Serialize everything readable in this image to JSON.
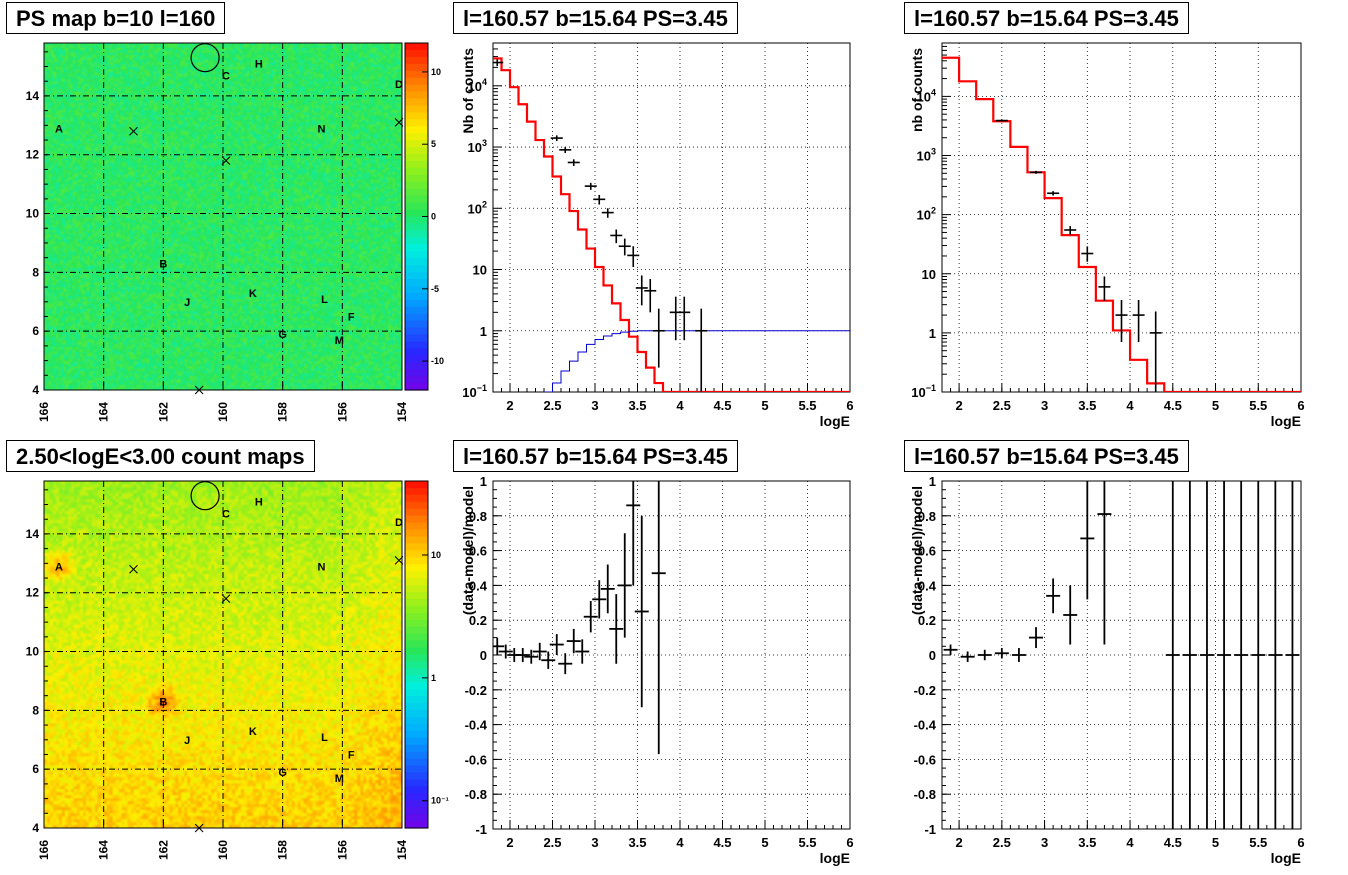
{
  "panels": {
    "ps_map": {
      "title": "PS map b=10 l=160"
    },
    "count_map": {
      "title": "2.50<logE<3.00 count maps"
    },
    "spec1": {
      "title": "l=160.57 b=15.64 PS=3.45"
    },
    "spec2": {
      "title": "l=160.57 b=15.64 PS=3.45"
    },
    "resid1": {
      "title": "l=160.57 b=15.64 PS=3.45"
    },
    "resid2": {
      "title": "l=160.57 b=15.64 PS=3.45"
    }
  },
  "chart_data": [
    {
      "id": "ps_map",
      "type": "heatmap",
      "title": "PS map b=10 l=160",
      "x_range": [
        166,
        154
      ],
      "y_range": [
        4,
        15.8
      ],
      "x_ticks": [
        "166",
        "164",
        "162",
        "160",
        "158",
        "156",
        "154"
      ],
      "y_ticks": [
        "4",
        "6",
        "8",
        "10",
        "12",
        "14"
      ],
      "colorbar_ticks": [
        "10",
        "5",
        "0",
        "-5",
        "-10"
      ],
      "colorbar_range": [
        -12,
        12
      ],
      "background_value": 0,
      "grid": true,
      "markers": [
        {
          "label": "A",
          "l": 165.5,
          "b": 12.9
        },
        {
          "label": "B",
          "l": 162.0,
          "b": 8.3
        },
        {
          "label": "C",
          "l": 159.9,
          "b": 14.7
        },
        {
          "label": "D",
          "l": 154.1,
          "b": 14.4
        },
        {
          "label": "F",
          "l": 155.7,
          "b": 6.5
        },
        {
          "label": "G",
          "l": 158.0,
          "b": 5.9
        },
        {
          "label": "H",
          "l": 158.8,
          "b": 15.1
        },
        {
          "label": "J",
          "l": 161.2,
          "b": 7.0
        },
        {
          "label": "K",
          "l": 159.0,
          "b": 7.3
        },
        {
          "label": "L",
          "l": 156.6,
          "b": 7.1
        },
        {
          "label": "M",
          "l": 156.1,
          "b": 5.7
        },
        {
          "label": "N",
          "l": 156.7,
          "b": 12.9
        }
      ],
      "crosses": [
        {
          "l": 163.0,
          "b": 12.8
        },
        {
          "l": 159.9,
          "b": 11.8
        },
        {
          "l": 160.8,
          "b": 4.0
        },
        {
          "l": 154.1,
          "b": 13.1
        }
      ],
      "circle": {
        "l": 160.6,
        "b": 15.3
      }
    },
    {
      "id": "count_map",
      "type": "heatmap",
      "title": "2.50<logE<3.00 count maps",
      "x_range": [
        166,
        154
      ],
      "y_range": [
        4,
        15.8
      ],
      "x_ticks": [
        "166",
        "164",
        "162",
        "160",
        "158",
        "156",
        "154"
      ],
      "y_ticks": [
        "4",
        "6",
        "8",
        "10",
        "12",
        "14"
      ],
      "colorbar_ticks": [
        "10",
        "1",
        "10⁻¹"
      ],
      "colorbar_log": true,
      "colorbar_range": [
        0.06,
        40
      ],
      "grid": true,
      "markers": [
        {
          "label": "A",
          "l": 165.5,
          "b": 12.9
        },
        {
          "label": "B",
          "l": 162.0,
          "b": 8.3
        },
        {
          "label": "C",
          "l": 159.9,
          "b": 14.7
        },
        {
          "label": "D",
          "l": 154.1,
          "b": 14.4
        },
        {
          "label": "F",
          "l": 155.7,
          "b": 6.5
        },
        {
          "label": "G",
          "l": 158.0,
          "b": 5.9
        },
        {
          "label": "H",
          "l": 158.8,
          "b": 15.1
        },
        {
          "label": "J",
          "l": 161.2,
          "b": 7.0
        },
        {
          "label": "K",
          "l": 159.0,
          "b": 7.3
        },
        {
          "label": "L",
          "l": 156.6,
          "b": 7.1
        },
        {
          "label": "M",
          "l": 156.1,
          "b": 5.7
        },
        {
          "label": "N",
          "l": 156.7,
          "b": 12.9
        }
      ],
      "crosses": [
        {
          "l": 163.0,
          "b": 12.8
        },
        {
          "l": 159.9,
          "b": 11.8
        },
        {
          "l": 160.8,
          "b": 4.0
        },
        {
          "l": 154.1,
          "b": 13.1
        }
      ],
      "circle": {
        "l": 160.6,
        "b": 15.3
      }
    },
    {
      "id": "spec1",
      "type": "line",
      "title": "l=160.57 b=15.64 PS=3.45",
      "xlabel": "logE",
      "ylabel": "Nb of counts",
      "xlim": [
        1.8,
        6
      ],
      "ylog": true,
      "ylim": [
        0.1,
        50000
      ],
      "x_ticks": [
        "2",
        "2.5",
        "3",
        "3.5",
        "4",
        "4.5",
        "5",
        "5.5",
        "6"
      ],
      "y_ticks": [
        {
          "v": 0.1,
          "base": "10",
          "exp": "−1"
        },
        {
          "v": 1,
          "base": "1"
        },
        {
          "v": 10,
          "base": "10"
        },
        {
          "v": 100,
          "base": "10",
          "exp": "2"
        },
        {
          "v": 1000,
          "base": "10",
          "exp": "3"
        },
        {
          "v": 10000,
          "base": "10",
          "exp": "4"
        }
      ],
      "model_step": {
        "edges": [
          1.8,
          1.9,
          2.0,
          2.1,
          2.2,
          2.3,
          2.4,
          2.5,
          2.6,
          2.7,
          2.8,
          2.9,
          3.0,
          3.1,
          3.2,
          3.3,
          3.4,
          3.5,
          3.6,
          3.7,
          3.8,
          3.9,
          4.0,
          4.1,
          4.2,
          4.3,
          6.0
        ],
        "values": [
          28000,
          18000,
          9500,
          5000,
          2600,
          1300,
          700,
          330,
          170,
          90,
          45,
          22,
          11,
          5.5,
          2.8,
          1.5,
          0.8,
          0.45,
          0.25,
          0.14,
          0.1,
          0.1,
          0.1,
          0.1,
          0.1,
          0.1
        ]
      },
      "data_points": [
        {
          "x": 1.85,
          "y": 24000,
          "lo": 21000,
          "hi": 27000
        },
        {
          "x": 2.55,
          "y": 1400,
          "lo": 1250,
          "hi": 1550
        },
        {
          "x": 2.65,
          "y": 900,
          "lo": 800,
          "hi": 1000
        },
        {
          "x": 2.75,
          "y": 560,
          "lo": 490,
          "hi": 630
        },
        {
          "x": 2.95,
          "y": 230,
          "lo": 200,
          "hi": 260
        },
        {
          "x": 3.05,
          "y": 140,
          "lo": 115,
          "hi": 165
        },
        {
          "x": 3.15,
          "y": 85,
          "lo": 70,
          "hi": 100
        },
        {
          "x": 3.25,
          "y": 36,
          "lo": 27,
          "hi": 45
        },
        {
          "x": 3.35,
          "y": 24,
          "lo": 17,
          "hi": 32
        },
        {
          "x": 3.45,
          "y": 17,
          "lo": 11,
          "hi": 24
        },
        {
          "x": 3.55,
          "y": 5,
          "lo": 2.6,
          "hi": 8
        },
        {
          "x": 3.65,
          "y": 4.5,
          "lo": 2,
          "hi": 7
        },
        {
          "x": 3.75,
          "y": 1.0,
          "lo": 0.25,
          "hi": 2.3
        },
        {
          "x": 3.95,
          "y": 2.0,
          "lo": 0.7,
          "hi": 3.6
        },
        {
          "x": 4.05,
          "y": 2.0,
          "lo": 0.7,
          "hi": 3.6
        },
        {
          "x": 4.25,
          "y": 1.0,
          "lo": 0.1,
          "hi": 2.3
        }
      ],
      "bg_curve": {
        "x": [
          2.4,
          2.5,
          2.6,
          2.7,
          2.8,
          2.9,
          3.0,
          3.1,
          3.2,
          3.3,
          3.4,
          3.5,
          3.6,
          3.7,
          3.8,
          3.9,
          4.0,
          6.0
        ],
        "y": [
          0.1,
          0.14,
          0.22,
          0.32,
          0.45,
          0.6,
          0.72,
          0.82,
          0.9,
          0.95,
          0.98,
          1.0,
          1.0,
          1.0,
          1.0,
          1.0,
          1.0,
          1.0
        ]
      }
    },
    {
      "id": "spec2",
      "type": "line",
      "title": "l=160.57 b=15.64 PS=3.45",
      "xlabel": "logE",
      "ylabel": "nb of counts",
      "xlim": [
        1.8,
        6
      ],
      "ylog": true,
      "ylim": [
        0.1,
        80000
      ],
      "x_ticks": [
        "2",
        "2.5",
        "3",
        "3.5",
        "4",
        "4.5",
        "5",
        "5.5",
        "6"
      ],
      "y_ticks": [
        {
          "v": 0.1,
          "base": "10",
          "exp": "−1"
        },
        {
          "v": 1,
          "base": "1"
        },
        {
          "v": 10,
          "base": "10"
        },
        {
          "v": 100,
          "base": "10",
          "exp": "2"
        },
        {
          "v": 1000,
          "base": "10",
          "exp": "3"
        },
        {
          "v": 10000,
          "base": "10",
          "exp": "4"
        }
      ],
      "model_step": {
        "edges": [
          1.8,
          2.0,
          2.2,
          2.4,
          2.6,
          2.8,
          3.0,
          3.2,
          3.4,
          3.6,
          3.8,
          4.0,
          4.2,
          4.4,
          4.6,
          6.0
        ],
        "values": [
          45000,
          18000,
          9000,
          3800,
          1400,
          520,
          190,
          45,
          13,
          3.5,
          1.1,
          0.35,
          0.14,
          0.1,
          0.1
        ]
      },
      "data_points": [
        {
          "x": 2.5,
          "y": 3900,
          "lo": 3750,
          "hi": 4050
        },
        {
          "x": 2.9,
          "y": 520,
          "lo": 490,
          "hi": 550
        },
        {
          "x": 3.1,
          "y": 230,
          "lo": 210,
          "hi": 250
        },
        {
          "x": 3.3,
          "y": 55,
          "lo": 46,
          "hi": 64
        },
        {
          "x": 3.5,
          "y": 22,
          "lo": 16,
          "hi": 29
        },
        {
          "x": 3.7,
          "y": 6,
          "lo": 3.5,
          "hi": 9
        },
        {
          "x": 3.9,
          "y": 2,
          "lo": 0.7,
          "hi": 3.6
        },
        {
          "x": 4.1,
          "y": 2,
          "lo": 0.7,
          "hi": 3.6
        },
        {
          "x": 4.3,
          "y": 1,
          "lo": 0.1,
          "hi": 2.3
        }
      ]
    },
    {
      "id": "resid1",
      "type": "scatter",
      "title": "l=160.57 b=15.64 PS=3.45",
      "xlabel": "logE",
      "ylabel": "(data-model)/model",
      "xlim": [
        1.8,
        6
      ],
      "ylim": [
        -1,
        1
      ],
      "x_ticks": [
        "2",
        "2.5",
        "3",
        "3.5",
        "4",
        "4.5",
        "5",
        "5.5",
        "6"
      ],
      "y_ticks": [
        "1",
        "0.8",
        "0.6",
        "0.4",
        "0.2",
        "0",
        "-0.2",
        "-0.4",
        "-0.6",
        "-0.8",
        "-1"
      ],
      "data_points": [
        {
          "x": 1.85,
          "y": 0.05,
          "lo": 0.0,
          "hi": 0.1
        },
        {
          "x": 1.95,
          "y": 0.02,
          "lo": -0.02,
          "hi": 0.06
        },
        {
          "x": 2.05,
          "y": 0.0,
          "lo": -0.04,
          "hi": 0.04
        },
        {
          "x": 2.15,
          "y": 0.0,
          "lo": -0.04,
          "hi": 0.04
        },
        {
          "x": 2.25,
          "y": -0.01,
          "lo": -0.05,
          "hi": 0.03
        },
        {
          "x": 2.35,
          "y": 0.02,
          "lo": -0.03,
          "hi": 0.07
        },
        {
          "x": 2.45,
          "y": -0.03,
          "lo": -0.08,
          "hi": 0.02
        },
        {
          "x": 2.55,
          "y": 0.06,
          "lo": 0.0,
          "hi": 0.12
        },
        {
          "x": 2.65,
          "y": -0.05,
          "lo": -0.11,
          "hi": 0.01
        },
        {
          "x": 2.75,
          "y": 0.08,
          "lo": 0.01,
          "hi": 0.15
        },
        {
          "x": 2.85,
          "y": 0.02,
          "lo": -0.05,
          "hi": 0.09
        },
        {
          "x": 2.95,
          "y": 0.22,
          "lo": 0.13,
          "hi": 0.31
        },
        {
          "x": 3.05,
          "y": 0.32,
          "lo": 0.21,
          "hi": 0.43
        },
        {
          "x": 3.15,
          "y": 0.38,
          "lo": 0.24,
          "hi": 0.52
        },
        {
          "x": 3.25,
          "y": 0.15,
          "lo": -0.05,
          "hi": 0.35
        },
        {
          "x": 3.35,
          "y": 0.4,
          "lo": 0.1,
          "hi": 0.7
        },
        {
          "x": 3.45,
          "y": 0.86,
          "lo": 0.4,
          "hi": 1.3
        },
        {
          "x": 3.55,
          "y": 0.25,
          "lo": -0.3,
          "hi": 0.8
        },
        {
          "x": 3.75,
          "y": 0.47,
          "lo": -0.57,
          "hi": 1.5
        }
      ]
    },
    {
      "id": "resid2",
      "type": "scatter",
      "title": "l=160.57 b=15.64 PS=3.45",
      "xlabel": "logE",
      "ylabel": "(data-model)/model",
      "xlim": [
        1.8,
        6
      ],
      "ylim": [
        -1,
        1
      ],
      "x_ticks": [
        "2",
        "2.5",
        "3",
        "3.5",
        "4",
        "4.5",
        "5",
        "5.5",
        "6"
      ],
      "y_ticks": [
        "1",
        "0.8",
        "0.6",
        "0.4",
        "0.2",
        "0",
        "-0.2",
        "-0.4",
        "-0.6",
        "-0.8",
        "-1"
      ],
      "data_points": [
        {
          "x": 1.9,
          "y": 0.03,
          "lo": 0.0,
          "hi": 0.06
        },
        {
          "x": 2.1,
          "y": -0.01,
          "lo": -0.04,
          "hi": 0.02
        },
        {
          "x": 2.3,
          "y": 0.0,
          "lo": -0.03,
          "hi": 0.03
        },
        {
          "x": 2.5,
          "y": 0.01,
          "lo": -0.02,
          "hi": 0.04
        },
        {
          "x": 2.7,
          "y": 0.0,
          "lo": -0.04,
          "hi": 0.04
        },
        {
          "x": 2.9,
          "y": 0.1,
          "lo": 0.04,
          "hi": 0.16
        },
        {
          "x": 3.1,
          "y": 0.34,
          "lo": 0.24,
          "hi": 0.44
        },
        {
          "x": 3.3,
          "y": 0.23,
          "lo": 0.06,
          "hi": 0.4
        },
        {
          "x": 3.5,
          "y": 0.67,
          "lo": 0.32,
          "hi": 1.02
        },
        {
          "x": 3.7,
          "y": 0.81,
          "lo": 0.06,
          "hi": 1.56
        },
        {
          "x": 4.5,
          "y": 0,
          "lo": -1.5,
          "hi": 1.5
        },
        {
          "x": 4.7,
          "y": 0,
          "lo": -1.5,
          "hi": 1.5
        },
        {
          "x": 4.9,
          "y": 0,
          "lo": -1.5,
          "hi": 1.5
        },
        {
          "x": 5.1,
          "y": 0,
          "lo": -1.5,
          "hi": 1.5
        },
        {
          "x": 5.3,
          "y": 0,
          "lo": -1.5,
          "hi": 1.5
        },
        {
          "x": 5.5,
          "y": 0,
          "lo": -1.5,
          "hi": 1.5
        },
        {
          "x": 5.7,
          "y": 0,
          "lo": -1.5,
          "hi": 1.5
        },
        {
          "x": 5.9,
          "y": 0,
          "lo": -1.5,
          "hi": 1.5
        }
      ]
    }
  ]
}
